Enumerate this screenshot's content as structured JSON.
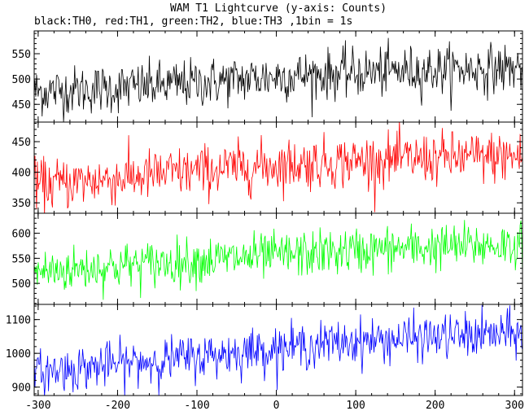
{
  "chart_data": {
    "type": "line",
    "title": "WAM T1 Lightcurve (y-axis: Counts)",
    "subtitle": "black:TH0, red:TH1, green:TH2, blue:TH3 ,1bin = 1s",
    "xlabel": "",
    "ylabel": "",
    "xlim": [
      -305,
      310
    ],
    "x_ticks": [
      -300,
      -200,
      -100,
      0,
      100,
      200,
      300
    ],
    "x_tick_labels": [
      "-300",
      "-200",
      "-100",
      "0",
      "100",
      "200",
      "300"
    ],
    "x_step": 1,
    "grid": false,
    "legend": "none",
    "series": [
      {
        "id": "TH0",
        "color": "#000000",
        "ylim": [
          415,
          595
        ],
        "y_ticks": [
          450,
          500,
          550
        ],
        "y_tick_labels": [
          "450",
          "500",
          "550"
        ],
        "trend": [
          [
            -305,
            475
          ],
          [
            -200,
            482
          ],
          [
            -100,
            492
          ],
          [
            0,
            505
          ],
          [
            100,
            512
          ],
          [
            200,
            518
          ],
          [
            310,
            522
          ]
        ],
        "noise": 24
      },
      {
        "id": "TH1",
        "color": "#ff0000",
        "ylim": [
          333,
          482
        ],
        "y_ticks": [
          350,
          400,
          450
        ],
        "y_tick_labels": [
          "350",
          "400",
          "450"
        ],
        "trend": [
          [
            -305,
            378
          ],
          [
            -200,
            390
          ],
          [
            -100,
            402
          ],
          [
            0,
            412
          ],
          [
            100,
            418
          ],
          [
            200,
            423
          ],
          [
            310,
            426
          ]
        ],
        "noise": 21
      },
      {
        "id": "TH2",
        "color": "#00ff00",
        "ylim": [
          458,
          640
        ],
        "y_ticks": [
          500,
          550,
          600
        ],
        "y_tick_labels": [
          "500",
          "550",
          "600"
        ],
        "trend": [
          [
            -305,
            522
          ],
          [
            -200,
            535
          ],
          [
            -100,
            545
          ],
          [
            0,
            555
          ],
          [
            100,
            565
          ],
          [
            200,
            572
          ],
          [
            310,
            578
          ]
        ],
        "noise": 23
      },
      {
        "id": "TH3",
        "color": "#0000ff",
        "ylim": [
          875,
          1145
        ],
        "y_ticks": [
          900,
          1000,
          1100
        ],
        "y_tick_labels": [
          "900",
          "1000",
          "1100"
        ],
        "trend": [
          [
            -305,
            942
          ],
          [
            -200,
            968
          ],
          [
            -100,
            990
          ],
          [
            0,
            1015
          ],
          [
            100,
            1035
          ],
          [
            200,
            1048
          ],
          [
            310,
            1058
          ]
        ],
        "noise": 33
      }
    ]
  }
}
